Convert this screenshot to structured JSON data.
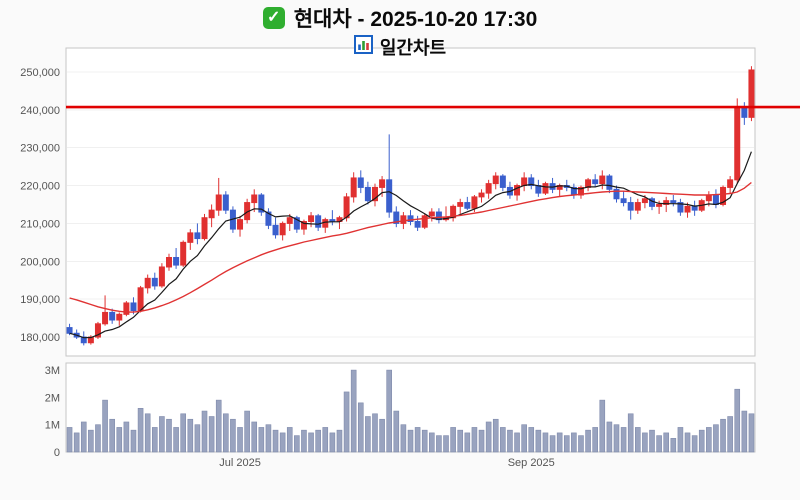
{
  "header": {
    "title": "현대차 - 2025-10-20 17:30",
    "subtitle": "일간차트",
    "check_glyph": "✓"
  },
  "colors": {
    "up": "#e03030",
    "down": "#3a5fcd",
    "ma_fast": "#1a1a1a",
    "ma_slow": "#e03333",
    "reference_line": "#e00000",
    "volume_fill": "#99a3bf",
    "volume_border": "#7f8aab",
    "plot_border": "#c6c6c6",
    "plot_bg": "#ffffff",
    "page_bg": "#fafafa",
    "axis_text": "#555555",
    "grid": "#f0f0f0"
  },
  "chart_data": {
    "type": "candlestick_with_volume",
    "title": "현대차 - 2025-10-20 17:30",
    "subtitle": "일간차트",
    "price_scale": 1000,
    "volume_scale": 1000000,
    "y_axis": {
      "tick_labels": [
        "250,000",
        "240,000",
        "230,000",
        "220,000",
        "210,000",
        "200,000",
        "190,000",
        "180,000"
      ],
      "tick_values": [
        250,
        240,
        230,
        220,
        210,
        200,
        190,
        180
      ],
      "range": [
        175.0,
        256.3
      ]
    },
    "volume_axis": {
      "tick_labels": [
        "3M",
        "2M",
        "1M",
        "0"
      ],
      "tick_values": [
        3,
        2,
        1,
        0
      ],
      "range": [
        0,
        3.26
      ]
    },
    "x_ticks": [
      {
        "label": "Jul 2025",
        "index": 24
      },
      {
        "label": "Sep 2025",
        "index": 65
      }
    ],
    "reference_line": 240.7,
    "ma_fast_window": 7,
    "ma_slow": [
      190.3,
      189.8,
      189.2,
      188.6,
      188.0,
      187.5,
      187.1,
      186.8,
      186.6,
      186.6,
      186.8,
      187.2,
      187.7,
      188.3,
      189.0,
      189.8,
      190.7,
      191.7,
      192.8,
      193.9,
      195.0,
      196.2,
      197.3,
      198.3,
      199.2,
      200.1,
      200.9,
      201.7,
      202.4,
      203.0,
      203.6,
      204.1,
      204.6,
      205.1,
      205.5,
      205.9,
      206.3,
      206.7,
      207.0,
      207.4,
      207.9,
      208.4,
      208.9,
      209.3,
      209.7,
      210.1,
      210.4,
      210.7,
      210.9,
      211.1,
      211.3,
      211.5,
      211.6,
      211.7,
      211.9,
      212.1,
      212.4,
      212.7,
      213.0,
      213.4,
      213.8,
      214.2,
      214.6,
      215.0,
      215.4,
      215.8,
      216.2,
      216.5,
      216.8,
      217.1,
      217.3,
      217.5,
      217.7,
      217.9,
      218.1,
      218.3,
      218.4,
      218.5,
      218.5,
      218.4,
      218.3,
      218.2,
      218.1,
      218.0,
      217.9,
      217.8,
      217.7,
      217.6,
      217.5,
      217.5,
      217.5,
      217.6,
      217.7,
      217.9,
      218.3,
      219.3,
      220.8
    ],
    "candle_columns": [
      "open",
      "high",
      "low",
      "close",
      "volume"
    ],
    "candles": [
      [
        182.5,
        183.5,
        180.5,
        181.0,
        0.9
      ],
      [
        181.0,
        182.0,
        179.5,
        180.0,
        0.7
      ],
      [
        180.0,
        181.5,
        177.8,
        178.5,
        1.1
      ],
      [
        178.5,
        180.5,
        178.0,
        180.0,
        0.8
      ],
      [
        180.0,
        184.0,
        179.5,
        183.5,
        1.0
      ],
      [
        183.5,
        191.0,
        183.0,
        186.5,
        1.9
      ],
      [
        186.5,
        187.5,
        183.5,
        184.5,
        1.2
      ],
      [
        184.5,
        186.5,
        183.0,
        186.0,
        0.9
      ],
      [
        186.0,
        189.5,
        185.5,
        189.0,
        1.1
      ],
      [
        189.0,
        190.5,
        186.0,
        187.0,
        0.8
      ],
      [
        187.0,
        193.5,
        186.5,
        193.0,
        1.6
      ],
      [
        193.0,
        196.5,
        191.5,
        195.5,
        1.4
      ],
      [
        195.5,
        197.0,
        192.5,
        193.5,
        0.9
      ],
      [
        193.5,
        199.5,
        193.0,
        198.5,
        1.3
      ],
      [
        198.5,
        202.0,
        197.5,
        201.0,
        1.2
      ],
      [
        201.0,
        203.5,
        198.0,
        199.0,
        0.9
      ],
      [
        199.0,
        205.5,
        198.5,
        205.0,
        1.4
      ],
      [
        205.0,
        208.5,
        203.0,
        207.5,
        1.2
      ],
      [
        207.5,
        210.0,
        204.5,
        206.0,
        1.0
      ],
      [
        206.0,
        212.5,
        205.5,
        211.5,
        1.5
      ],
      [
        211.5,
        215.0,
        209.0,
        213.5,
        1.3
      ],
      [
        213.5,
        222.0,
        212.0,
        217.5,
        1.9
      ],
      [
        217.5,
        218.5,
        212.5,
        213.5,
        1.4
      ],
      [
        213.5,
        214.5,
        207.5,
        208.5,
        1.2
      ],
      [
        208.5,
        212.0,
        206.5,
        211.0,
        0.9
      ],
      [
        211.0,
        216.5,
        210.0,
        215.5,
        1.5
      ],
      [
        215.5,
        219.0,
        213.0,
        217.5,
        1.1
      ],
      [
        217.5,
        218.0,
        212.0,
        213.0,
        0.9
      ],
      [
        213.0,
        214.0,
        208.5,
        209.5,
        1.0
      ],
      [
        209.5,
        211.5,
        206.0,
        207.0,
        0.8
      ],
      [
        207.0,
        210.5,
        205.5,
        210.0,
        0.7
      ],
      [
        210.0,
        212.5,
        208.0,
        211.5,
        0.9
      ],
      [
        211.5,
        212.0,
        207.5,
        208.5,
        0.6
      ],
      [
        208.5,
        211.0,
        207.0,
        210.5,
        0.8
      ],
      [
        210.5,
        213.0,
        209.0,
        212.0,
        0.7
      ],
      [
        212.0,
        212.5,
        208.0,
        209.0,
        0.8
      ],
      [
        209.0,
        211.5,
        207.5,
        211.0,
        0.9
      ],
      [
        211.0,
        213.5,
        209.5,
        210.5,
        0.7
      ],
      [
        210.5,
        212.0,
        208.5,
        211.5,
        0.8
      ],
      [
        211.5,
        218.0,
        210.5,
        217.0,
        2.2
      ],
      [
        217.0,
        223.5,
        215.5,
        222.0,
        3.0
      ],
      [
        222.0,
        224.0,
        218.0,
        219.5,
        1.8
      ],
      [
        219.5,
        221.0,
        215.0,
        216.0,
        1.3
      ],
      [
        216.0,
        220.5,
        214.5,
        219.5,
        1.4
      ],
      [
        219.5,
        222.5,
        217.0,
        221.5,
        1.2
      ],
      [
        221.5,
        233.5,
        211.5,
        213.0,
        3.0
      ],
      [
        213.0,
        214.5,
        209.0,
        210.0,
        1.5
      ],
      [
        210.0,
        213.0,
        208.5,
        212.0,
        1.0
      ],
      [
        212.0,
        213.5,
        209.5,
        210.5,
        0.8
      ],
      [
        210.5,
        212.0,
        208.0,
        209.0,
        0.9
      ],
      [
        209.0,
        212.5,
        208.5,
        212.0,
        0.8
      ],
      [
        212.0,
        214.0,
        210.5,
        213.0,
        0.7
      ],
      [
        213.0,
        214.0,
        210.0,
        211.0,
        0.6
      ],
      [
        211.0,
        214.5,
        210.5,
        211.5,
        0.6
      ],
      [
        211.5,
        215.0,
        210.5,
        214.5,
        0.9
      ],
      [
        214.5,
        216.5,
        212.5,
        215.5,
        0.8
      ],
      [
        215.5,
        217.0,
        213.5,
        214.0,
        0.7
      ],
      [
        214.0,
        217.5,
        213.0,
        217.0,
        0.9
      ],
      [
        217.0,
        219.0,
        215.5,
        218.0,
        0.8
      ],
      [
        218.0,
        221.5,
        216.5,
        220.5,
        1.1
      ],
      [
        220.5,
        223.5,
        219.0,
        222.5,
        1.2
      ],
      [
        222.5,
        223.0,
        218.5,
        219.5,
        0.9
      ],
      [
        219.5,
        221.0,
        216.5,
        217.5,
        0.8
      ],
      [
        217.5,
        220.5,
        216.0,
        220.0,
        0.7
      ],
      [
        220.0,
        223.5,
        218.5,
        222.0,
        1.0
      ],
      [
        222.0,
        223.0,
        219.0,
        220.0,
        0.9
      ],
      [
        220.0,
        221.5,
        217.0,
        218.0,
        0.8
      ],
      [
        218.0,
        221.0,
        217.5,
        220.5,
        0.7
      ],
      [
        220.5,
        222.0,
        218.0,
        219.0,
        0.6
      ],
      [
        219.0,
        220.5,
        217.0,
        220.0,
        0.7
      ],
      [
        220.0,
        221.5,
        218.5,
        219.5,
        0.6
      ],
      [
        219.5,
        220.5,
        216.5,
        217.5,
        0.7
      ],
      [
        217.5,
        220.0,
        216.5,
        219.5,
        0.6
      ],
      [
        219.5,
        222.0,
        218.5,
        221.5,
        0.8
      ],
      [
        221.5,
        223.0,
        219.5,
        220.5,
        0.9
      ],
      [
        220.5,
        224.0,
        219.0,
        222.5,
        1.9
      ],
      [
        222.5,
        223.0,
        218.0,
        219.0,
        1.1
      ],
      [
        219.0,
        220.0,
        215.5,
        216.5,
        1.0
      ],
      [
        216.5,
        218.5,
        214.5,
        215.5,
        0.9
      ],
      [
        215.5,
        217.0,
        211.0,
        213.5,
        1.4
      ],
      [
        213.5,
        216.5,
        212.5,
        215.5,
        0.9
      ],
      [
        215.5,
        217.5,
        214.0,
        216.5,
        0.7
      ],
      [
        216.5,
        217.0,
        213.5,
        214.5,
        0.8
      ],
      [
        214.5,
        216.0,
        212.5,
        215.0,
        0.6
      ],
      [
        215.0,
        217.0,
        213.0,
        216.0,
        0.7
      ],
      [
        216.0,
        217.5,
        214.5,
        215.5,
        0.5
      ],
      [
        215.5,
        216.5,
        212.0,
        213.0,
        0.9
      ],
      [
        213.0,
        215.5,
        211.5,
        214.5,
        0.7
      ],
      [
        214.5,
        216.0,
        212.0,
        213.5,
        0.6
      ],
      [
        213.5,
        216.5,
        213.0,
        216.0,
        0.8
      ],
      [
        216.0,
        218.5,
        214.5,
        217.5,
        0.9
      ],
      [
        217.5,
        219.0,
        214.0,
        215.0,
        1.0
      ],
      [
        215.0,
        220.0,
        214.5,
        219.5,
        1.2
      ],
      [
        219.5,
        222.5,
        218.0,
        221.5,
        1.3
      ],
      [
        221.5,
        243.0,
        220.5,
        240.5,
        2.3
      ],
      [
        240.5,
        242.0,
        236.0,
        238.0,
        1.5
      ],
      [
        238.0,
        251.5,
        237.0,
        250.5,
        1.4
      ]
    ]
  }
}
